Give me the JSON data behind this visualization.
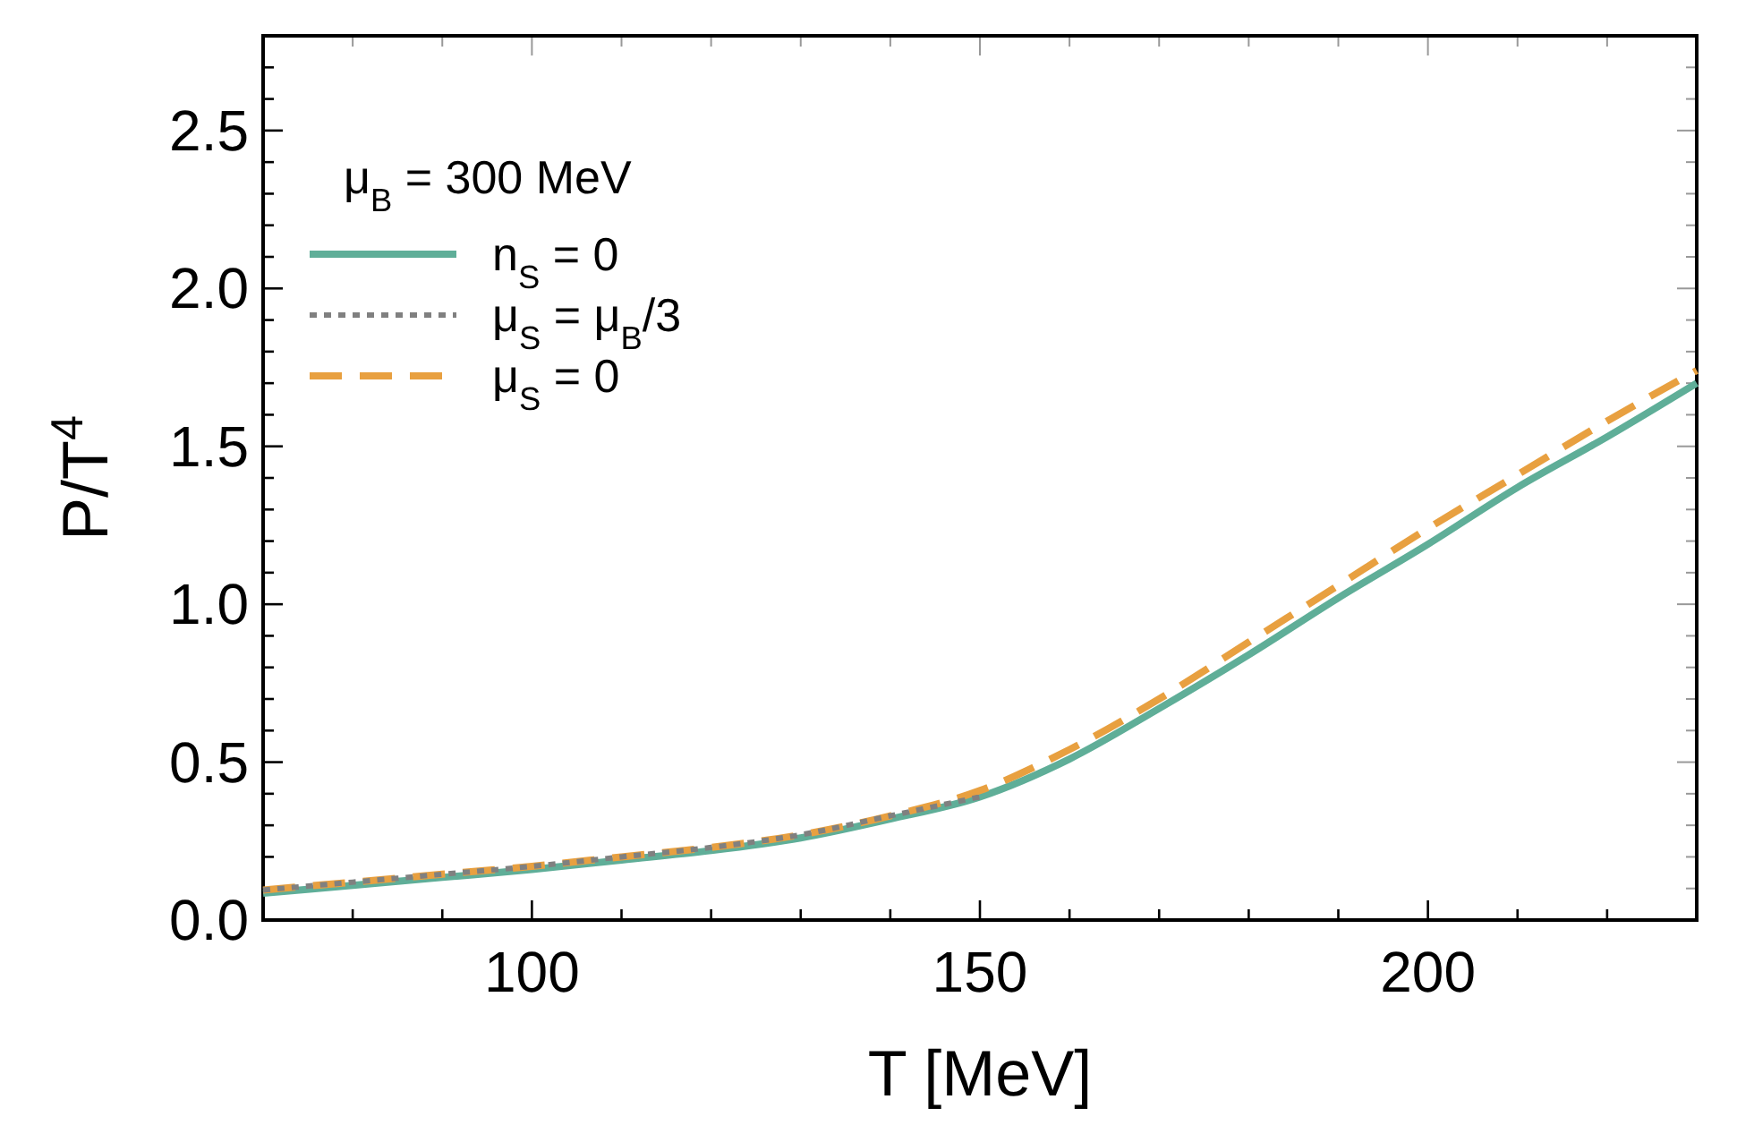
{
  "chart_data": {
    "type": "line",
    "xlabel": "T [MeV]",
    "ylabel": "P/T$^{4}$",
    "legend_title": "μ$_{B}$ = 300 MeV",
    "legend": "top left",
    "marker": "none",
    "grid": false,
    "x": [
      70,
      80,
      90,
      100,
      110,
      120,
      130,
      140,
      150,
      160,
      170,
      180,
      190,
      200,
      210,
      220,
      230
    ],
    "xlim": [
      70,
      230
    ],
    "xticks": [
      {
        "value": 70,
        "label": null
      },
      {
        "value": 80,
        "label": null
      },
      {
        "value": 90,
        "label": null
      },
      100,
      {
        "value": 110,
        "label": null
      },
      {
        "value": 120,
        "label": null
      },
      {
        "value": 130,
        "label": null
      },
      {
        "value": 140,
        "label": null
      },
      150,
      {
        "value": 160,
        "label": null
      },
      {
        "value": 170,
        "label": null
      },
      {
        "value": 180,
        "label": null
      },
      {
        "value": 190,
        "label": null
      },
      200,
      {
        "value": 210,
        "label": null
      },
      {
        "value": 220,
        "label": null
      },
      {
        "value": 230,
        "label": null
      }
    ],
    "ylim": [
      0,
      2.8
    ],
    "yticks": [
      {
        "value": 0,
        "label": "0.0"
      },
      {
        "value": 0.1,
        "label": null
      },
      {
        "value": 0.2,
        "label": null
      },
      {
        "value": 0.3,
        "label": null
      },
      {
        "value": 0.4,
        "label": null
      },
      0.5,
      {
        "value": 0.6,
        "label": null
      },
      {
        "value": 0.7,
        "label": null
      },
      {
        "value": 0.8,
        "label": null
      },
      {
        "value": 0.9,
        "label": null
      },
      {
        "value": 1,
        "label": "1.0"
      },
      {
        "value": 1.1,
        "label": null
      },
      {
        "value": 1.2,
        "label": null
      },
      {
        "value": 1.3,
        "label": null
      },
      {
        "value": 1.4,
        "label": null
      },
      1.5,
      {
        "value": 1.6,
        "label": null
      },
      {
        "value": 1.7,
        "label": null
      },
      {
        "value": 1.8,
        "label": null
      },
      {
        "value": 1.9,
        "label": null
      },
      {
        "value": 2,
        "label": "2.0"
      },
      {
        "value": 2.1,
        "label": null
      },
      {
        "value": 2.2,
        "label": null
      },
      {
        "value": 2.3,
        "label": null
      },
      {
        "value": 2.4,
        "label": null
      },
      2.5,
      {
        "value": 2.6,
        "label": null
      },
      {
        "value": 2.7,
        "label": null
      },
      {
        "value": 2.8,
        "label": null
      }
    ],
    "series": [
      {
        "name": "μ$_{S}$ = μ$_{B}$/3",
        "color": "#808080",
        "line_style": "dotted",
        "values": [
          0.095,
          0.12,
          0.145,
          0.17,
          0.2,
          0.23,
          0.27,
          0.33,
          0.39,
          null,
          null,
          null,
          null,
          null,
          null,
          null,
          null
        ]
      },
      {
        "name": "n$_{S}$ = 0",
        "color": "#5fae98",
        "line_style": "solid",
        "values": [
          0.085,
          0.11,
          0.135,
          0.16,
          0.19,
          0.22,
          0.26,
          0.32,
          0.39,
          0.51,
          0.67,
          0.84,
          1.02,
          1.19,
          1.37,
          1.53,
          1.7
        ]
      },
      {
        "name": "μ$_{S}$ = 0",
        "color": "#e8a040",
        "line_style": "dashed",
        "values": [
          0.095,
          0.12,
          0.145,
          0.17,
          0.2,
          0.23,
          0.27,
          0.33,
          0.41,
          0.54,
          0.7,
          0.88,
          1.06,
          1.24,
          1.41,
          1.58,
          1.74
        ]
      }
    ]
  }
}
